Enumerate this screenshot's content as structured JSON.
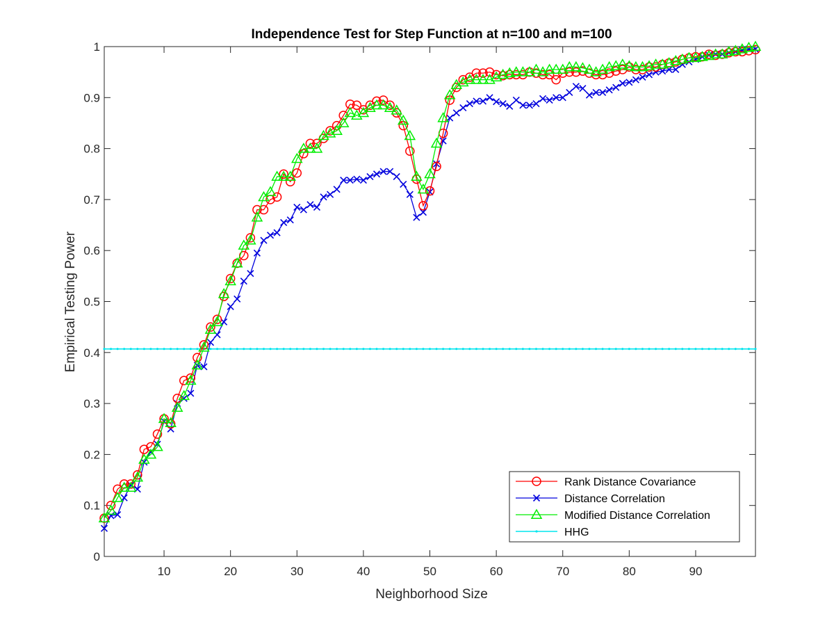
{
  "chart_data": {
    "type": "line",
    "title": "Independence Test for Step Function at n=100 and m=100",
    "xlabel": "Neighborhood Size",
    "ylabel": "Empirical Testing Power",
    "xlim": [
      1,
      99
    ],
    "ylim": [
      0,
      1
    ],
    "xticks": [
      "10",
      "20",
      "30",
      "40",
      "50",
      "60",
      "70",
      "80",
      "90"
    ],
    "yticks": [
      "0",
      "0.1",
      "0.2",
      "0.3",
      "0.4",
      "0.5",
      "0.6",
      "0.7",
      "0.8",
      "0.9",
      "1"
    ],
    "grid": false,
    "legend_position": "bottom-right",
    "x": [
      1,
      2,
      3,
      4,
      5,
      6,
      7,
      8,
      9,
      10,
      11,
      12,
      13,
      14,
      15,
      16,
      17,
      18,
      19,
      20,
      21,
      22,
      23,
      24,
      25,
      26,
      27,
      28,
      29,
      30,
      31,
      32,
      33,
      34,
      35,
      36,
      37,
      38,
      39,
      40,
      41,
      42,
      43,
      44,
      45,
      46,
      47,
      48,
      49,
      50,
      51,
      52,
      53,
      54,
      55,
      56,
      57,
      58,
      59,
      60,
      61,
      62,
      63,
      64,
      65,
      66,
      67,
      68,
      69,
      70,
      71,
      72,
      73,
      74,
      75,
      76,
      77,
      78,
      79,
      80,
      81,
      82,
      83,
      84,
      85,
      86,
      87,
      88,
      89,
      90,
      91,
      92,
      93,
      94,
      95,
      96,
      97,
      98,
      99
    ],
    "series": [
      {
        "name": "Rank Distance Covariance",
        "color": "#ff0000",
        "marker": "circle",
        "values": [
          0.075,
          0.1,
          0.132,
          0.142,
          0.142,
          0.16,
          0.21,
          0.215,
          0.24,
          0.27,
          0.26,
          0.31,
          0.345,
          0.35,
          0.39,
          0.415,
          0.45,
          0.465,
          0.51,
          0.545,
          0.575,
          0.59,
          0.625,
          0.68,
          0.68,
          0.7,
          0.705,
          0.75,
          0.735,
          0.752,
          0.79,
          0.81,
          0.81,
          0.82,
          0.835,
          0.845,
          0.865,
          0.887,
          0.885,
          0.876,
          0.885,
          0.893,
          0.895,
          0.885,
          0.87,
          0.845,
          0.795,
          0.74,
          0.688,
          0.717,
          0.765,
          0.83,
          0.895,
          0.92,
          0.935,
          0.94,
          0.948,
          0.948,
          0.95,
          0.945,
          0.943,
          0.945,
          0.945,
          0.945,
          0.95,
          0.948,
          0.945,
          0.945,
          0.935,
          0.948,
          0.95,
          0.95,
          0.952,
          0.948,
          0.945,
          0.945,
          0.948,
          0.952,
          0.955,
          0.96,
          0.955,
          0.955,
          0.96,
          0.96,
          0.965,
          0.968,
          0.97,
          0.975,
          0.978,
          0.98,
          0.98,
          0.985,
          0.983,
          0.985,
          0.988,
          0.99,
          0.99,
          0.992,
          0.994
        ]
      },
      {
        "name": "Distance Correlation",
        "color": "#0000dd",
        "marker": "x",
        "values": [
          0.055,
          0.08,
          0.082,
          0.115,
          0.14,
          0.132,
          0.185,
          0.205,
          0.22,
          0.265,
          0.25,
          0.3,
          0.31,
          0.32,
          0.375,
          0.372,
          0.42,
          0.435,
          0.46,
          0.49,
          0.505,
          0.54,
          0.555,
          0.595,
          0.62,
          0.63,
          0.635,
          0.655,
          0.66,
          0.685,
          0.68,
          0.69,
          0.685,
          0.705,
          0.71,
          0.72,
          0.738,
          0.738,
          0.74,
          0.738,
          0.745,
          0.75,
          0.755,
          0.755,
          0.745,
          0.73,
          0.71,
          0.665,
          0.675,
          0.715,
          0.77,
          0.815,
          0.86,
          0.87,
          0.88,
          0.888,
          0.893,
          0.893,
          0.9,
          0.892,
          0.888,
          0.883,
          0.895,
          0.885,
          0.885,
          0.888,
          0.898,
          0.895,
          0.9,
          0.9,
          0.91,
          0.922,
          0.918,
          0.905,
          0.91,
          0.91,
          0.915,
          0.92,
          0.928,
          0.93,
          0.935,
          0.94,
          0.945,
          0.95,
          0.952,
          0.955,
          0.955,
          0.965,
          0.97,
          0.975,
          0.98,
          0.983,
          0.985,
          0.985,
          0.988,
          0.99,
          0.993,
          0.995,
          0.995
        ]
      },
      {
        "name": "Modified Distance Correlation",
        "color": "#00ee00",
        "marker": "triangle",
        "values": [
          0.075,
          0.09,
          0.115,
          0.135,
          0.135,
          0.155,
          0.19,
          0.2,
          0.215,
          0.27,
          0.262,
          0.292,
          0.315,
          0.345,
          0.375,
          0.41,
          0.445,
          0.46,
          0.515,
          0.54,
          0.575,
          0.61,
          0.62,
          0.665,
          0.705,
          0.715,
          0.745,
          0.745,
          0.745,
          0.78,
          0.8,
          0.8,
          0.8,
          0.825,
          0.83,
          0.835,
          0.85,
          0.87,
          0.865,
          0.87,
          0.88,
          0.885,
          0.885,
          0.88,
          0.875,
          0.855,
          0.825,
          0.745,
          0.72,
          0.75,
          0.81,
          0.86,
          0.905,
          0.925,
          0.93,
          0.935,
          0.935,
          0.935,
          0.935,
          0.94,
          0.945,
          0.948,
          0.95,
          0.95,
          0.95,
          0.955,
          0.95,
          0.955,
          0.955,
          0.955,
          0.96,
          0.96,
          0.958,
          0.955,
          0.95,
          0.955,
          0.96,
          0.962,
          0.965,
          0.962,
          0.96,
          0.96,
          0.962,
          0.965,
          0.965,
          0.968,
          0.972,
          0.975,
          0.978,
          0.978,
          0.98,
          0.982,
          0.985,
          0.985,
          0.99,
          0.992,
          0.995,
          0.998,
          1.0
        ]
      },
      {
        "name": "HHG",
        "color": "#00e5ee",
        "marker": "dot",
        "constant": 0.407
      }
    ]
  }
}
